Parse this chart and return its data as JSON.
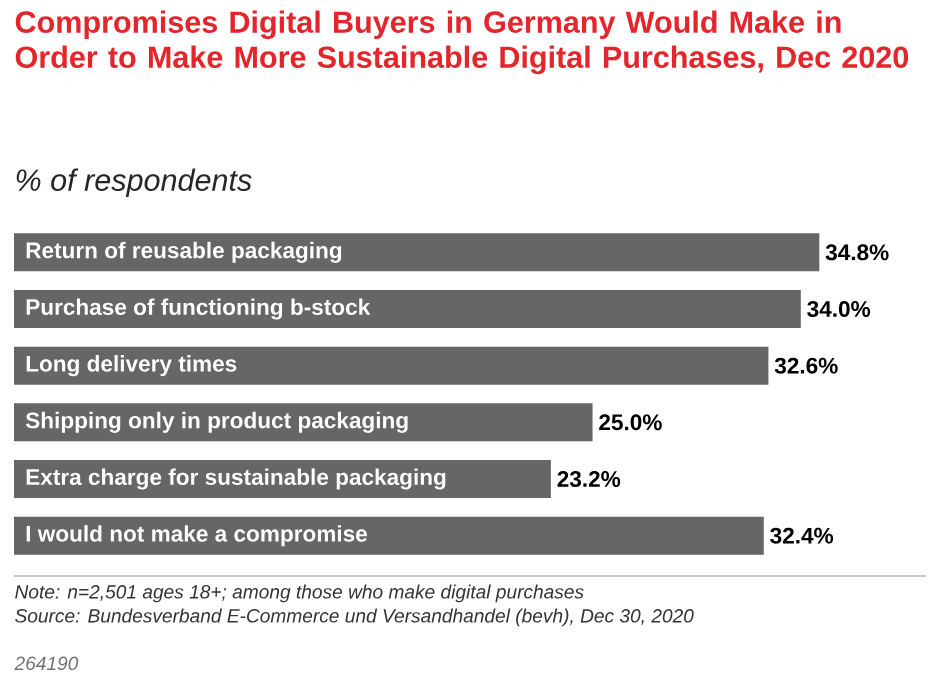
{
  "chart_data": {
    "type": "bar",
    "orientation": "horizontal",
    "title": "Compromises Digital Buyers in Germany Would Make in Order to Make More Sustainable Digital Purchases, Dec 2020",
    "subtitle": "% of respondents",
    "categories": [
      "Return of reusable packaging",
      "Purchase of functioning b-stock",
      "Long delivery times",
      "Shipping only in product packaging",
      "Extra charge for sustainable packaging",
      "I would not make a compromise"
    ],
    "values": [
      34.8,
      34.0,
      32.6,
      25.0,
      23.2,
      32.4
    ],
    "value_labels": [
      "34.8%",
      "34.0%",
      "32.6%",
      "25.0%",
      "23.2%",
      "32.4%"
    ],
    "color": "#666666",
    "annotations": [
      "Note: n=2,501 ages 18+; among those who make digital purchases",
      "Source: Bundesverband E-Commerce und Versandhandel (bevh), Dec 30, 2020",
      "264190"
    ]
  }
}
